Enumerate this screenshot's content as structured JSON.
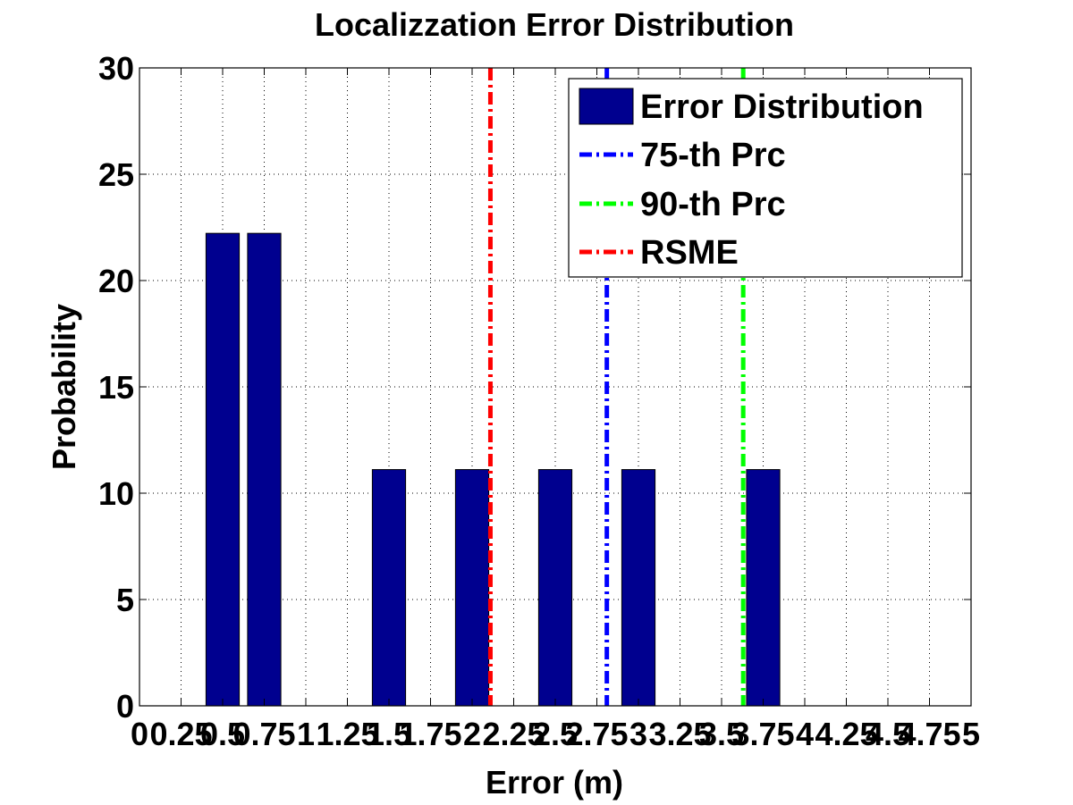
{
  "chart_data": {
    "type": "bar",
    "title": "Localizzation Error Distribution",
    "xlabel": "Error (m)",
    "ylabel": "Probability",
    "xlim": [
      0,
      5
    ],
    "ylim": [
      0,
      30
    ],
    "grid": true,
    "legend_position": "top-right",
    "xticks": [
      0,
      0.25,
      0.5,
      0.75,
      1,
      1.25,
      1.5,
      1.75,
      2,
      2.25,
      2.5,
      2.75,
      3,
      3.25,
      3.5,
      3.75,
      4,
      4.25,
      4.5,
      4.75,
      5
    ],
    "xtick_labels": [
      "0",
      "0.25",
      "0.5",
      "0.75",
      "1",
      "1.25",
      "1.5",
      "1.75",
      "2",
      "2.25",
      "2.5",
      "2.75",
      "3",
      "3.25",
      "3.5",
      "3.75",
      "4",
      "4.25",
      "4.5",
      "4.75",
      "5"
    ],
    "yticks": [
      0,
      5,
      10,
      15,
      20,
      25,
      30
    ],
    "ytick_labels": [
      "0",
      "5",
      "10",
      "15",
      "20",
      "25",
      "30"
    ],
    "bar_width": 0.2,
    "bars": {
      "name": "Error Distribution",
      "color": "#00008F",
      "x": [
        0.5,
        0.75,
        1.5,
        2.0,
        2.5,
        3.0,
        3.75
      ],
      "values": [
        22.22,
        22.22,
        11.11,
        11.11,
        11.11,
        11.11,
        11.11
      ]
    },
    "lines": [
      {
        "name": "75-th Prc",
        "x": 2.81,
        "color": "#0000FF"
      },
      {
        "name": "90-th Prc",
        "x": 3.63,
        "color": "#00FF00"
      },
      {
        "name": "RSME",
        "x": 2.11,
        "color": "#FF0000"
      }
    ]
  }
}
